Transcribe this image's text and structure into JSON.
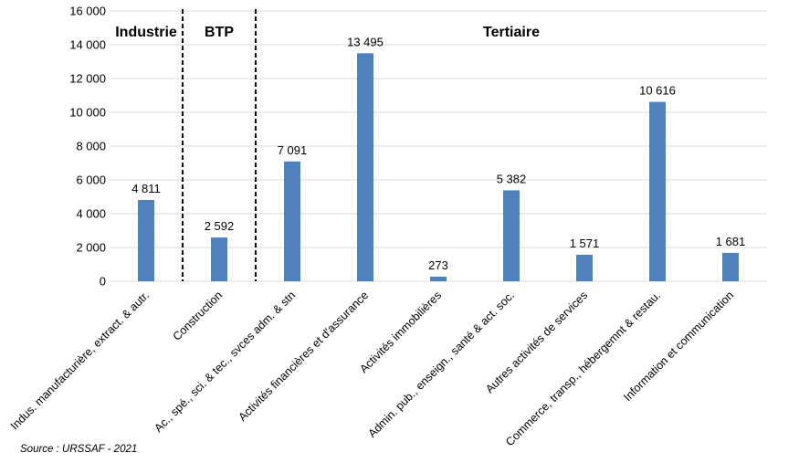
{
  "chart_data": {
    "type": "bar",
    "categories": [
      "Indus. manufacturière, extract. & autr.",
      "Construction",
      "Ac., spé., sci. & tec., svces adm. & stn",
      "Activités financières et d'assurance",
      "Activités immobilières",
      "Admin. pub., enseign., santé & act. soc.",
      "Autres activités de services",
      "Commerce, transp., hébergemnt & restau.",
      "Information et communication"
    ],
    "values": [
      4811,
      2592,
      7091,
      13495,
      273,
      5382,
      1571,
      10616,
      1681
    ],
    "value_labels": [
      "4 811",
      "2 592",
      "7 091",
      "13 495",
      "273",
      "5 382",
      "1 571",
      "10 616",
      "1 681"
    ],
    "ylim": [
      0,
      16000
    ],
    "yticks": [
      0,
      2000,
      4000,
      6000,
      8000,
      10000,
      12000,
      14000,
      16000
    ],
    "ytick_labels": [
      "0",
      "2 000",
      "4 000",
      "6 000",
      "8 000",
      "10 000",
      "12 000",
      "14 000",
      "16 000"
    ],
    "sections": [
      {
        "label": "Industrie",
        "start": 0,
        "end": 0
      },
      {
        "label": "BTP",
        "start": 1,
        "end": 1
      },
      {
        "label": "Tertiaire",
        "start": 2,
        "end": 8
      }
    ],
    "grid": true,
    "bar_color": "#4f81bd",
    "grid_color": "#d9d9d9"
  },
  "source": "Source : URSSAF  - 2021"
}
